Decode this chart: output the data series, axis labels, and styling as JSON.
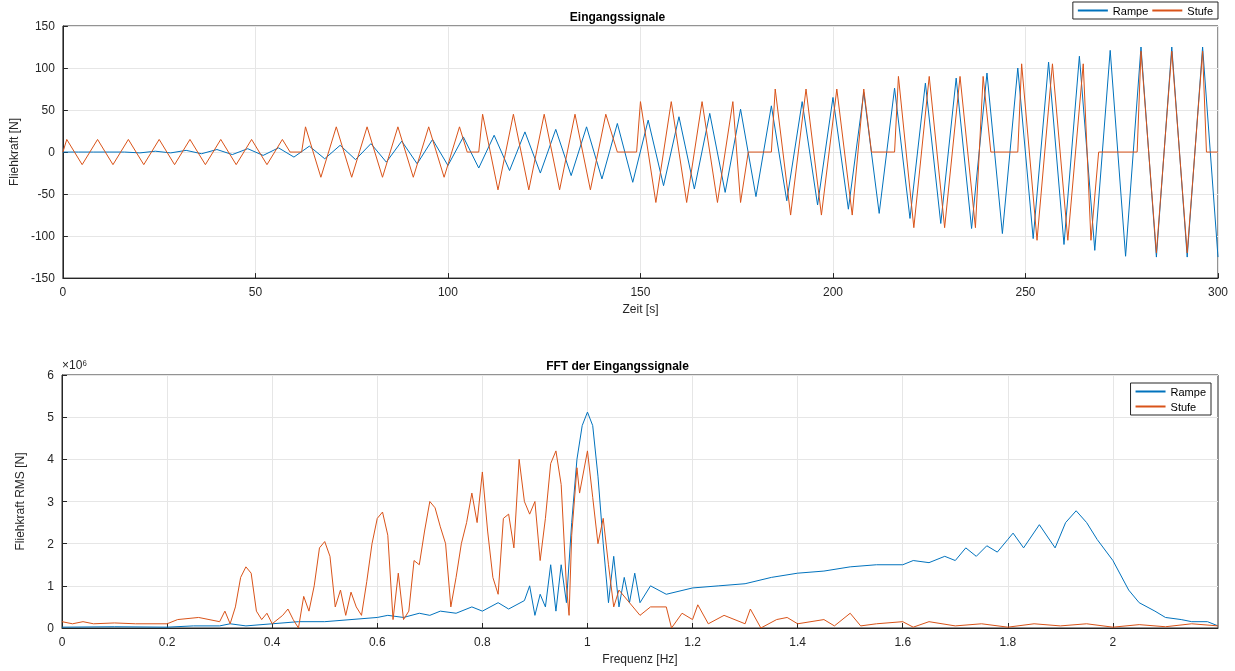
{
  "chart_data": [
    {
      "type": "line",
      "title": "Eingangssignale",
      "xlabel": "Zeit [s]",
      "ylabel": "Fliehkraft [N]",
      "xlim": [
        0,
        300
      ],
      "xticks": [
        0,
        50,
        100,
        150,
        200,
        250,
        300
      ],
      "ylim": [
        -150,
        150
      ],
      "yticks": [
        -150,
        -100,
        -50,
        0,
        50,
        100,
        150
      ],
      "grid": true,
      "legend": "top right",
      "marker": "none",
      "line_style": "solid",
      "series": [
        {
          "name": "Rampe",
          "color": "#0072bd",
          "x": [
            0,
            4,
            8,
            12,
            16,
            20,
            24,
            28,
            32,
            36,
            40,
            44,
            48,
            52,
            56,
            60,
            64,
            68,
            72,
            76,
            80,
            84,
            88,
            92,
            96,
            100,
            104,
            108,
            112,
            116,
            120,
            124,
            128,
            132,
            136,
            140,
            144,
            148,
            152,
            156,
            160,
            164,
            168,
            172,
            176,
            180,
            184,
            188,
            192,
            196,
            200,
            204,
            208,
            212,
            216,
            220,
            224,
            228,
            232,
            236,
            240,
            244,
            248,
            252,
            256,
            260,
            264,
            268,
            272,
            276,
            280,
            284,
            288,
            292,
            296,
            300
          ],
          "values": [
            0,
            0,
            0,
            0,
            0,
            -1,
            1,
            -1,
            2,
            -2,
            3,
            -3,
            4,
            -4,
            5,
            -6,
            7,
            -8,
            8,
            -9,
            10,
            -12,
            13,
            -14,
            15,
            -16,
            18,
            -19,
            20,
            -22,
            24,
            -25,
            27,
            -28,
            30,
            -32,
            34,
            -36,
            38,
            -40,
            42,
            -44,
            46,
            -48,
            51,
            -53,
            55,
            -58,
            60,
            -63,
            65,
            -68,
            71,
            -73,
            76,
            -79,
            82,
            -85,
            88,
            -91,
            94,
            -97,
            100,
            -103,
            107,
            -110,
            114,
            -117,
            121,
            -124,
            125,
            -125,
            125,
            -125,
            125,
            -125
          ]
        },
        {
          "name": "Stufe",
          "color": "#d95319",
          "x": [
            0,
            1,
            5,
            9,
            13,
            17,
            21,
            25,
            29,
            33,
            37,
            41,
            45,
            49,
            53,
            57,
            59,
            62,
            63,
            67,
            71,
            75,
            79,
            83,
            87,
            91,
            95,
            99,
            103,
            105,
            108,
            109,
            113,
            117,
            121,
            125,
            129,
            133,
            137,
            141,
            144,
            149,
            150,
            154,
            158,
            162,
            166,
            170,
            174,
            176,
            178,
            184,
            185,
            189,
            193,
            197,
            201,
            205,
            208,
            210,
            216,
            217,
            221,
            225,
            229,
            233,
            237,
            239,
            241,
            248,
            249,
            253,
            257,
            261,
            265,
            267,
            269,
            279,
            280,
            284,
            288,
            292,
            296,
            297,
            300
          ],
          "values": [
            0,
            15,
            -15,
            15,
            -15,
            15,
            -15,
            15,
            -15,
            15,
            -15,
            15,
            -15,
            15,
            -15,
            15,
            0,
            0,
            30,
            -30,
            30,
            -30,
            30,
            -30,
            30,
            -30,
            30,
            -30,
            30,
            0,
            0,
            45,
            -45,
            45,
            -45,
            45,
            -45,
            45,
            -45,
            45,
            0,
            0,
            60,
            -60,
            60,
            -60,
            60,
            -60,
            60,
            -60,
            0,
            0,
            75,
            -75,
            75,
            -75,
            75,
            -75,
            75,
            0,
            0,
            90,
            -90,
            90,
            -90,
            90,
            -90,
            90,
            0,
            0,
            105,
            -105,
            105,
            -105,
            105,
            -105,
            0,
            0,
            120,
            -120,
            120,
            -120,
            120,
            0,
            0
          ]
        }
      ]
    },
    {
      "type": "line",
      "title": "FFT der Eingangssignale",
      "xlabel": "Frequenz [Hz]",
      "ylabel": "Fliehkraft RMS [N]",
      "annotations": [
        "×10⁶"
      ],
      "xlim": [
        0,
        2.2
      ],
      "xticks": [
        0,
        0.2,
        0.4,
        0.6,
        0.8,
        1,
        1.2,
        1.4,
        1.6,
        1.8,
        2
      ],
      "ylim": [
        0,
        6
      ],
      "yticks": [
        0,
        1,
        2,
        3,
        4,
        5,
        6
      ],
      "grid": true,
      "legend": "top right",
      "marker": "none",
      "line_style": "solid",
      "series": [
        {
          "name": "Rampe",
          "color": "#0072bd",
          "x": [
            0,
            0.1,
            0.2,
            0.25,
            0.3,
            0.32,
            0.35,
            0.4,
            0.45,
            0.5,
            0.55,
            0.6,
            0.62,
            0.65,
            0.68,
            0.7,
            0.72,
            0.75,
            0.78,
            0.8,
            0.83,
            0.85,
            0.88,
            0.89,
            0.9,
            0.91,
            0.92,
            0.93,
            0.94,
            0.95,
            0.96,
            0.97,
            0.98,
            0.99,
            1,
            1.01,
            1.02,
            1.03,
            1.04,
            1.05,
            1.06,
            1.07,
            1.08,
            1.09,
            1.1,
            1.12,
            1.15,
            1.2,
            1.25,
            1.3,
            1.35,
            1.4,
            1.45,
            1.5,
            1.55,
            1.6,
            1.62,
            1.65,
            1.68,
            1.7,
            1.72,
            1.74,
            1.76,
            1.78,
            1.8,
            1.81,
            1.83,
            1.86,
            1.89,
            1.91,
            1.93,
            1.95,
            1.97,
            2,
            2.03,
            2.05,
            2.08,
            2.1,
            2.13,
            2.15,
            2.18,
            2.2
          ],
          "values": [
            0.02,
            0.03,
            0.02,
            0.05,
            0.05,
            0.1,
            0.05,
            0.1,
            0.15,
            0.15,
            0.2,
            0.25,
            0.3,
            0.25,
            0.35,
            0.3,
            0.4,
            0.35,
            0.5,
            0.4,
            0.6,
            0.45,
            0.65,
            1,
            0.3,
            0.8,
            0.5,
            1.5,
            0.4,
            1.5,
            0.6,
            2.5,
            4,
            4.8,
            5.12,
            4.8,
            3.6,
            2,
            0.6,
            1.7,
            0.5,
            1.2,
            0.6,
            1.3,
            0.6,
            1,
            0.8,
            0.95,
            1,
            1.05,
            1.2,
            1.3,
            1.35,
            1.45,
            1.5,
            1.5,
            1.6,
            1.55,
            1.7,
            1.6,
            1.9,
            1.7,
            1.95,
            1.8,
            2.1,
            2.25,
            1.9,
            2.45,
            1.9,
            2.5,
            2.78,
            2.5,
            2.1,
            1.6,
            0.9,
            0.6,
            0.4,
            0.25,
            0.2,
            0.15,
            0.15,
            0.05
          ]
        },
        {
          "name": "Stufe",
          "color": "#d95319",
          "x": [
            0,
            0.02,
            0.04,
            0.06,
            0.1,
            0.14,
            0.2,
            0.22,
            0.26,
            0.3,
            0.31,
            0.32,
            0.33,
            0.34,
            0.35,
            0.36,
            0.37,
            0.38,
            0.39,
            0.4,
            0.42,
            0.43,
            0.44,
            0.45,
            0.46,
            0.47,
            0.48,
            0.49,
            0.5,
            0.51,
            0.52,
            0.53,
            0.54,
            0.55,
            0.56,
            0.57,
            0.58,
            0.59,
            0.6,
            0.61,
            0.62,
            0.63,
            0.64,
            0.65,
            0.66,
            0.67,
            0.68,
            0.69,
            0.7,
            0.71,
            0.72,
            0.73,
            0.74,
            0.75,
            0.76,
            0.77,
            0.78,
            0.79,
            0.8,
            0.81,
            0.82,
            0.83,
            0.84,
            0.85,
            0.86,
            0.87,
            0.88,
            0.89,
            0.9,
            0.91,
            0.92,
            0.93,
            0.94,
            0.95,
            0.96,
            0.965,
            0.97,
            0.98,
            0.985,
            1,
            1.01,
            1.02,
            1.03,
            1.04,
            1.05,
            1.06,
            1.08,
            1.1,
            1.12,
            1.15,
            1.16,
            1.18,
            1.2,
            1.21,
            1.23,
            1.26,
            1.3,
            1.31,
            1.33,
            1.36,
            1.38,
            1.4,
            1.45,
            1.47,
            1.5,
            1.52,
            1.55,
            1.6,
            1.62,
            1.65,
            1.7,
            1.75,
            1.8,
            1.85,
            1.9,
            1.95,
            2,
            2.05,
            2.1,
            2.15,
            2.2
          ],
          "values": [
            0.15,
            0.1,
            0.15,
            0.1,
            0.12,
            0.1,
            0.1,
            0.2,
            0.25,
            0.15,
            0.4,
            0.1,
            0.5,
            1.2,
            1.45,
            1.3,
            0.4,
            0.2,
            0.35,
            0.1,
            0.3,
            0.45,
            0.2,
            0,
            0.75,
            0.4,
            1,
            1.9,
            2.05,
            1.7,
            0.5,
            0.9,
            0.3,
            0.85,
            0.5,
            0.3,
            1.1,
            2,
            2.6,
            2.75,
            2.2,
            0.2,
            1.3,
            0.2,
            0.4,
            1.6,
            1.5,
            2.3,
            3,
            2.85,
            2.4,
            2,
            0.5,
            1.2,
            2,
            2.5,
            3.2,
            2.5,
            3.7,
            2.3,
            1.2,
            0.8,
            2.6,
            2.7,
            1.9,
            4,
            3,
            2.7,
            3,
            1.6,
            2.6,
            3.9,
            4.2,
            3.4,
            1,
            0.3,
            2.2,
            3.8,
            3.2,
            4.2,
            3.1,
            2,
            2.6,
            1.5,
            0.5,
            0.9,
            0.6,
            0.3,
            0.5,
            0.5,
            0,
            0.35,
            0.2,
            0.55,
            0.1,
            0.3,
            0.1,
            0.45,
            0,
            0.2,
            0.25,
            0.1,
            0.2,
            0.05,
            0.35,
            0.05,
            0.1,
            0.15,
            0.02,
            0.15,
            0.05,
            0.1,
            0.02,
            0.1,
            0.05,
            0.1,
            0.02,
            0.08,
            0.03,
            0.1,
            0.05
          ]
        }
      ]
    }
  ]
}
